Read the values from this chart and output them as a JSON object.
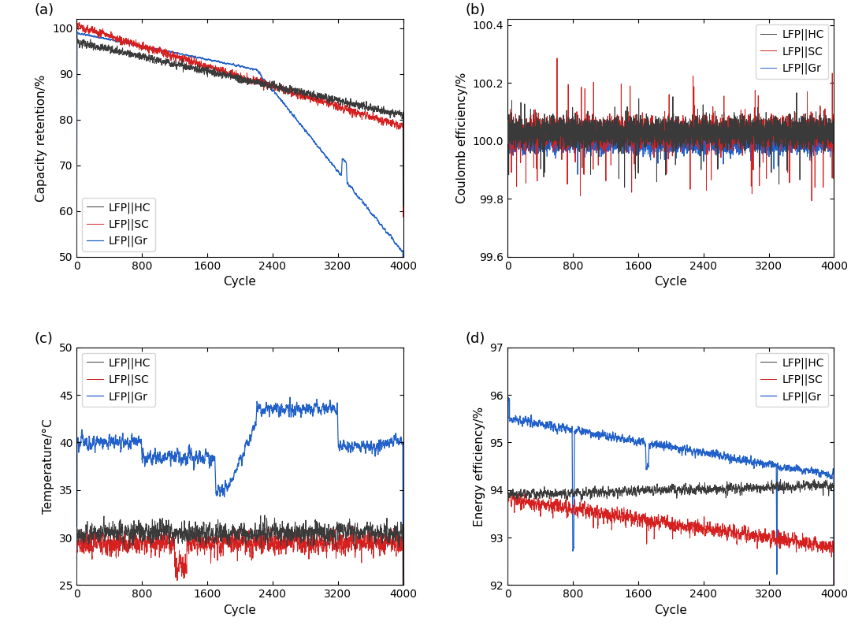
{
  "panel_labels": [
    "(a)",
    "(b)",
    "(c)",
    "(d)"
  ],
  "legend_labels": [
    "LFP||HC",
    "LFP||SC",
    "LFP||Gr"
  ],
  "colors": [
    "#3a3a3a",
    "#d62020",
    "#2060c8"
  ],
  "x_max": 4000,
  "x_ticks": [
    0,
    800,
    1600,
    2400,
    3200,
    4000
  ],
  "xlabel": "Cycle",
  "panels": {
    "a": {
      "ylabel": "Capacity retention/%",
      "ylim": [
        50,
        102
      ],
      "yticks": [
        50,
        60,
        70,
        80,
        90,
        100
      ]
    },
    "b": {
      "ylabel": "Coulomb efficiency/%",
      "ylim": [
        99.6,
        100.42
      ],
      "yticks": [
        99.6,
        99.8,
        100.0,
        100.2,
        100.4
      ]
    },
    "c": {
      "ylabel": "Temperature/°C",
      "ylim": [
        25,
        50
      ],
      "yticks": [
        25,
        30,
        35,
        40,
        45,
        50
      ]
    },
    "d": {
      "ylabel": "Energy efficiency/%",
      "ylim": [
        92,
        97
      ],
      "yticks": [
        92,
        93,
        94,
        95,
        96,
        97
      ]
    }
  }
}
